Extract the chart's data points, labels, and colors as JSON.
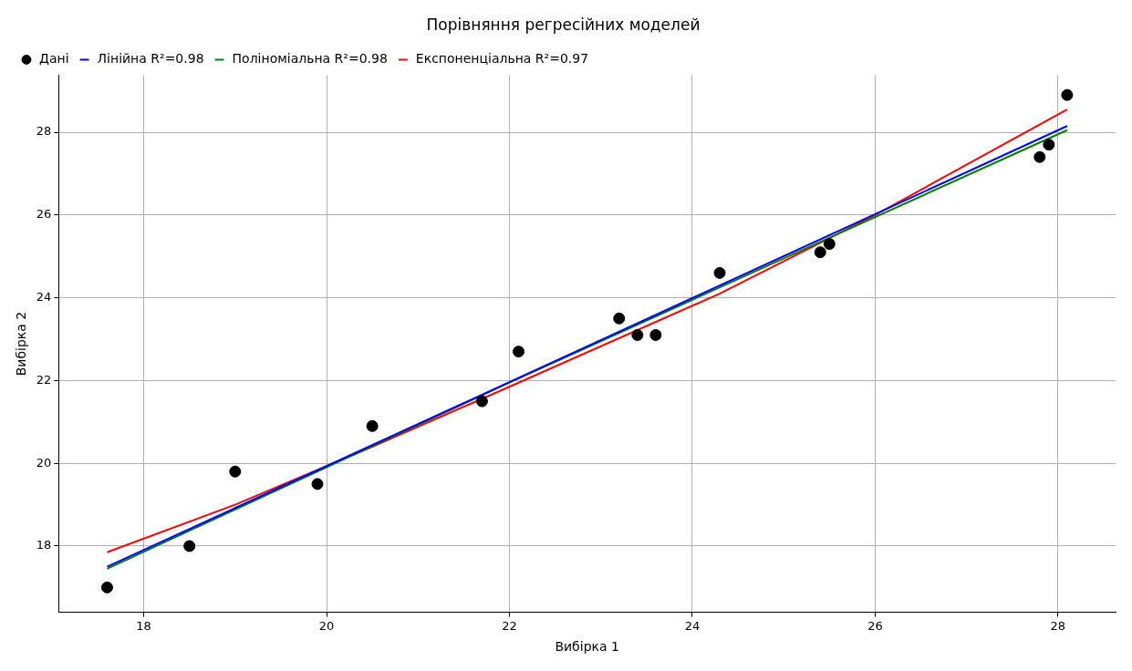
{
  "chart_data": {
    "type": "scatter",
    "title": "Порівняння регресійних моделей",
    "xlabel": "Вибірка 1",
    "ylabel": "Вибірка 2",
    "xlim": [
      17.07,
      28.63
    ],
    "ylim": [
      16.4,
      29.38
    ],
    "xticks": [
      18,
      20,
      22,
      24,
      26,
      28
    ],
    "yticks": [
      18,
      20,
      22,
      24,
      26,
      28
    ],
    "grid": true,
    "legend": "top left",
    "series": [
      {
        "name": "Дані",
        "type": "scatter",
        "marker": "circle",
        "color": "#000000",
        "x": [
          17.6,
          18.5,
          19.0,
          19.9,
          20.5,
          21.7,
          22.1,
          23.2,
          23.4,
          23.6,
          24.3,
          25.4,
          25.5,
          27.8,
          27.9,
          28.1
        ],
        "values": [
          17.0,
          18.0,
          19.8,
          19.5,
          20.9,
          21.5,
          22.7,
          23.5,
          23.1,
          23.1,
          24.6,
          25.1,
          25.3,
          27.4,
          27.7,
          28.9
        ]
      },
      {
        "name": "Лінійна R²=0.98",
        "type": "line",
        "color": "#0000ff",
        "x": [
          17.6,
          28.1
        ],
        "values": [
          17.5,
          28.15
        ]
      },
      {
        "name": "Поліноміальна R²=0.98",
        "type": "line",
        "color": "#008000",
        "x": [
          17.6,
          22,
          28.1
        ],
        "values": [
          17.45,
          21.95,
          28.05
        ]
      },
      {
        "name": "Експоненціальна R²=0.97",
        "type": "line",
        "color": "#ff0000",
        "x": [
          17.6,
          19,
          20.5,
          22,
          24.3,
          26,
          28.1
        ],
        "values": [
          17.85,
          19.0,
          20.4,
          21.85,
          24.1,
          26.0,
          28.55
        ]
      }
    ]
  }
}
